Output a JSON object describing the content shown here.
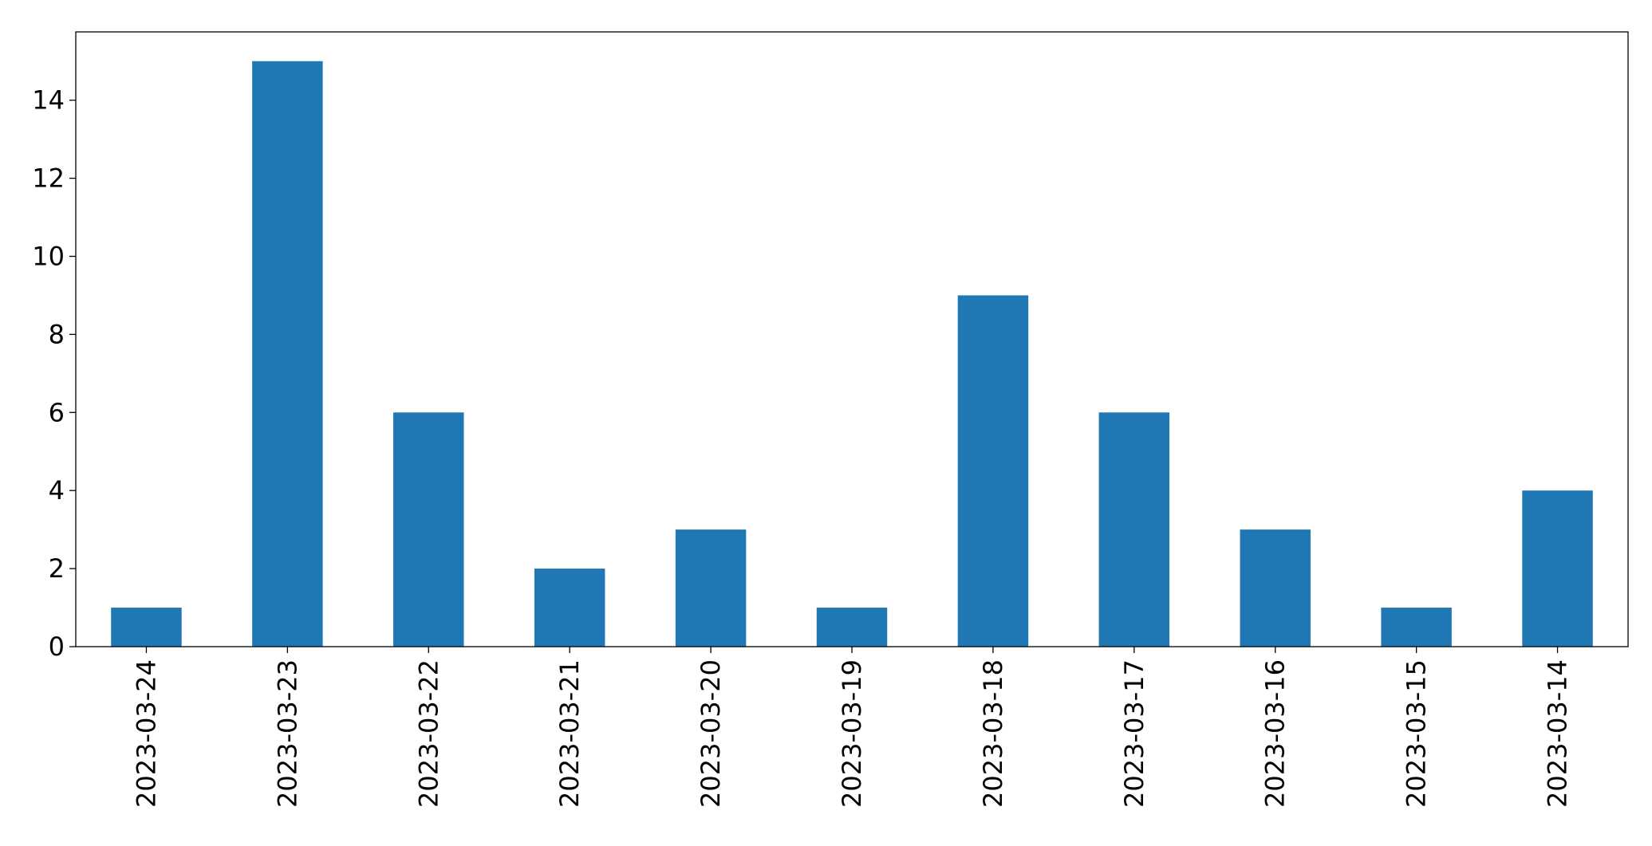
{
  "chart_data": {
    "type": "bar",
    "title": "",
    "xlabel": "",
    "ylabel": "",
    "categories": [
      "2023-03-24",
      "2023-03-23",
      "2023-03-22",
      "2023-03-21",
      "2023-03-20",
      "2023-03-19",
      "2023-03-18",
      "2023-03-17",
      "2023-03-16",
      "2023-03-15",
      "2023-03-14"
    ],
    "values": [
      1,
      15,
      6,
      2,
      3,
      1,
      9,
      6,
      3,
      1,
      4
    ],
    "ylim": [
      0,
      15.75
    ],
    "yticks": [
      0,
      2,
      4,
      6,
      8,
      10,
      12,
      14
    ],
    "ytick_labels": [
      "0",
      "2",
      "4",
      "6",
      "8",
      "10",
      "12",
      "14"
    ],
    "bar_color": "#1f77b4",
    "grid": false,
    "legend": "none"
  }
}
